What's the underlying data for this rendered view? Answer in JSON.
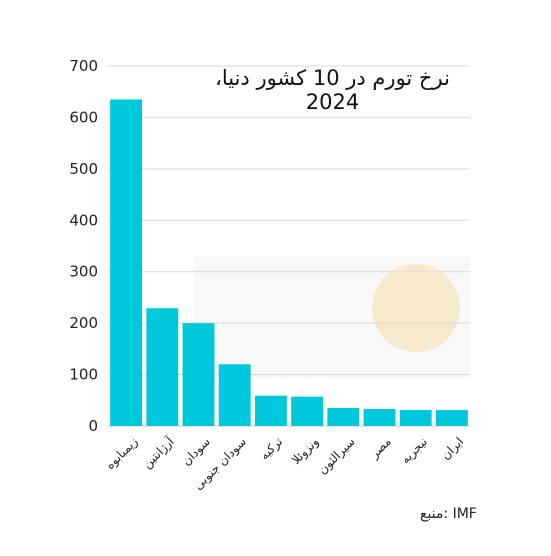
{
  "chart_data": {
    "type": "bar",
    "title": "نرخ تورم در 10 کشور دنیا، 2024",
    "categories": [
      "زیمبابوه",
      "آرژانتین",
      "سودان",
      "سودان جنوبی",
      "ترکیه",
      "ونزوئلا",
      "سیرالئون",
      "مصر",
      "نیجریه",
      "ایران"
    ],
    "values": [
      635,
      229,
      200,
      120,
      59,
      57,
      35,
      33,
      31,
      31
    ],
    "ylim": [
      0,
      700
    ],
    "yticks": [
      0,
      100,
      200,
      300,
      400,
      500,
      600,
      700
    ],
    "grid": true,
    "bar_color": "#00c8dc",
    "grid_color": "#d9d9d9",
    "source": "منبع: IMF"
  },
  "colors": {
    "accent": "#00c8dc"
  }
}
